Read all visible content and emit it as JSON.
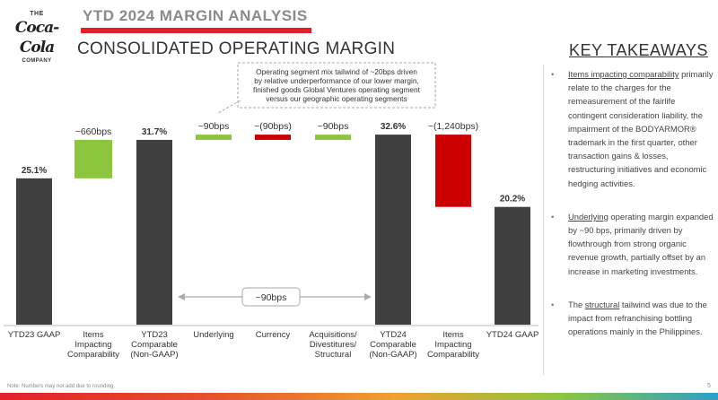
{
  "header": {
    "logo_top": "THE",
    "logo_script": "Coca-Cola",
    "logo_bottom": "COMPANY",
    "title": "YTD 2024 MARGIN ANALYSIS",
    "subtitle": "CONSOLIDATED OPERATING MARGIN"
  },
  "colors": {
    "dark": "#404040",
    "green": "#8cc63f",
    "red": "#cc0000",
    "accent": "#e41e2b"
  },
  "chart_data": {
    "type": "bar",
    "subtype": "waterfall",
    "unit": "%",
    "categories": [
      "YTD23 GAAP",
      "Items Impacting Comparability",
      "YTD23 Comparable (Non-GAAP)",
      "Underlying",
      "Currency",
      "Acquisitions/ Divestitures/ Structural",
      "YTD24 Comparable (Non-GAAP)",
      "Items Impacting Comparability",
      "YTD24 GAAP"
    ],
    "bars": [
      {
        "label_lines": [
          "YTD23 GAAP"
        ],
        "kind": "total",
        "start": 0,
        "end": 25.1,
        "value_label": "25.1%"
      },
      {
        "label_lines": [
          "Items",
          "Impacting",
          "Comparability"
        ],
        "kind": "increase",
        "start": 25.1,
        "end": 31.7,
        "value_label": "~660bps"
      },
      {
        "label_lines": [
          "YTD23",
          "Comparable",
          "(Non-GAAP)"
        ],
        "kind": "total",
        "start": 0,
        "end": 31.7,
        "value_label": "31.7%"
      },
      {
        "label_lines": [
          "Underlying"
        ],
        "kind": "increase",
        "start": 31.7,
        "end": 32.6,
        "value_label": "~90bps"
      },
      {
        "label_lines": [
          "Currency"
        ],
        "kind": "decrease",
        "start": 32.6,
        "end": 31.7,
        "value_label": "~(90bps)"
      },
      {
        "label_lines": [
          "Acquisitions/",
          "Divestitures/",
          "Structural"
        ],
        "kind": "increase",
        "start": 31.7,
        "end": 32.6,
        "value_label": "~90bps"
      },
      {
        "label_lines": [
          "YTD24",
          "Comparable",
          "(Non-GAAP)"
        ],
        "kind": "total",
        "start": 0,
        "end": 32.6,
        "value_label": "32.6%"
      },
      {
        "label_lines": [
          "Items",
          "Impacting",
          "Comparability"
        ],
        "kind": "decrease",
        "start": 32.6,
        "end": 20.2,
        "value_label": "~(1,240bps)"
      },
      {
        "label_lines": [
          "YTD24 GAAP"
        ],
        "kind": "total",
        "start": 0,
        "end": 20.2,
        "value_label": "20.2%"
      }
    ],
    "bracket_label": "~90bps",
    "callout_lines": [
      "Operating segment mix tailwind of ~20bps driven",
      "by relative underperformance of our lower margin,",
      "finished goods Global Ventures operating segment",
      "versus our geographic operating segments"
    ],
    "grid": false
  },
  "takeaways": {
    "title": "KEY TAKEAWAYS",
    "items": [
      {
        "lead": "Items impacting comparability",
        "text": " primarily relate to the charges for the remeasurement of the fairlife contingent consideration liability, the impairment of the BODYARMOR® trademark in the first quarter, other transaction gains & losses, restructuring initiatives and economic hedging activities."
      },
      {
        "lead": "Underlying",
        "text": " operating margin expanded by ~90 bps, primarily driven by flowthrough from strong organic revenue growth, partially offset by an increase in marketing investments."
      },
      {
        "pre": "The ",
        "lead": "structural",
        "text": " tailwind was due to the impact from refranchising bottling operations mainly in the Philippines."
      }
    ]
  },
  "footer": {
    "note": "Note: Numbers may not add due to rounding.",
    "page": "5"
  }
}
